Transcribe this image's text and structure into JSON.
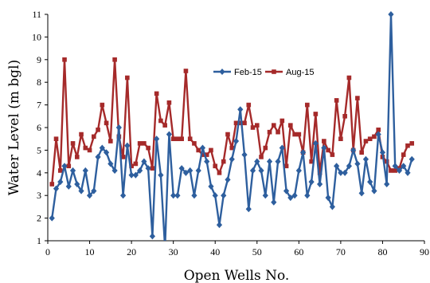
{
  "chart_data": {
    "type": "line",
    "title": "",
    "xlabel": "Open Wells No.",
    "ylabel": "Water Level (m bgl)",
    "xlim": [
      0,
      90
    ],
    "ylim": [
      1,
      11
    ],
    "xticks": [
      0,
      10,
      20,
      30,
      40,
      50,
      60,
      70,
      80,
      90
    ],
    "yticks": [
      1,
      2,
      3,
      4,
      5,
      6,
      7,
      8,
      9,
      10,
      11
    ],
    "grid": false,
    "legend_position": "top-center",
    "x": [
      1,
      2,
      3,
      4,
      5,
      6,
      7,
      8,
      9,
      10,
      11,
      12,
      13,
      14,
      15,
      16,
      17,
      18,
      19,
      20,
      21,
      22,
      23,
      24,
      25,
      26,
      27,
      28,
      29,
      30,
      31,
      32,
      33,
      34,
      35,
      36,
      37,
      38,
      39,
      40,
      41,
      42,
      43,
      44,
      45,
      46,
      47,
      48,
      49,
      50,
      51,
      52,
      53,
      54,
      55,
      56,
      57,
      58,
      59,
      60,
      61,
      62,
      63,
      64,
      65,
      66,
      67,
      68,
      69,
      70,
      71,
      72,
      73,
      74,
      75,
      76,
      77,
      78,
      79,
      80,
      81,
      82,
      83,
      84,
      85,
      86,
      87
    ],
    "series": [
      {
        "name": "Feb-15",
        "color": "#2e5f9e",
        "marker": "diamond",
        "values": [
          2.0,
          3.3,
          3.6,
          4.3,
          3.4,
          4.1,
          3.5,
          3.2,
          4.1,
          3.0,
          3.2,
          4.7,
          5.1,
          4.9,
          4.4,
          4.1,
          6.0,
          3.0,
          5.2,
          3.9,
          3.9,
          4.1,
          4.5,
          4.2,
          1.2,
          5.5,
          3.9,
          0.7,
          5.7,
          3.0,
          3.0,
          4.2,
          4.0,
          4.1,
          3.0,
          4.1,
          5.1,
          4.5,
          3.4,
          3.0,
          1.7,
          3.0,
          3.7,
          4.6,
          5.4,
          6.8,
          4.8,
          2.4,
          4.1,
          4.5,
          4.1,
          3.0,
          4.5,
          2.7,
          4.5,
          5.1,
          3.2,
          2.9,
          3.0,
          4.1,
          4.9,
          3.0,
          3.6,
          5.3,
          3.5,
          5.1,
          2.9,
          2.5,
          4.3,
          4.0,
          4.0,
          4.3,
          5.0,
          4.4,
          3.1,
          4.6,
          3.6,
          3.2,
          5.7,
          4.9,
          3.5,
          11.0,
          4.3,
          4.1,
          4.3,
          4.0,
          4.6
        ]
      },
      {
        "name": "Aug-15",
        "color": "#a52a2a",
        "marker": "square",
        "values": [
          3.5,
          5.5,
          4.1,
          9.0,
          4.3,
          5.3,
          4.7,
          5.7,
          5.1,
          5.0,
          5.6,
          5.9,
          7.0,
          6.2,
          5.4,
          9.0,
          5.6,
          4.7,
          8.2,
          4.3,
          4.4,
          5.3,
          5.3,
          5.1,
          4.2,
          7.5,
          6.3,
          6.1,
          7.1,
          5.5,
          5.5,
          5.5,
          8.5,
          5.5,
          5.3,
          5.0,
          4.8,
          4.8,
          5.0,
          4.3,
          4.0,
          4.5,
          5.7,
          5.1,
          6.2,
          6.2,
          6.2,
          7.0,
          6.0,
          6.1,
          4.7,
          5.1,
          5.8,
          6.1,
          5.8,
          6.3,
          4.3,
          6.1,
          5.7,
          5.7,
          4.9,
          7.0,
          4.5,
          6.6,
          4.0,
          5.4,
          5.0,
          4.8,
          7.2,
          5.5,
          6.5,
          8.2,
          5.0,
          7.3,
          4.9,
          5.4,
          5.5,
          5.6,
          5.9,
          4.7,
          4.5,
          4.1,
          4.1,
          4.2,
          4.8,
          5.2,
          5.3
        ]
      }
    ]
  }
}
